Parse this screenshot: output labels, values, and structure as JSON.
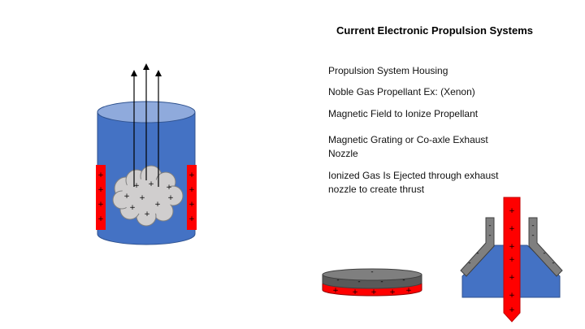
{
  "title": "Current Electronic Propulsion Systems",
  "legend": [
    "Propulsion System Housing",
    "Noble Gas Propellant Ex: (Xenon)",
    "Magnetic Field to Ionize Propellant",
    "Magnetic Grating or Co-axle Exhaust Nozzle",
    "Ionized Gas Is Ejected through exhaust nozzle to create thrust"
  ],
  "symbols": {
    "plus": "+",
    "minus": "-"
  },
  "colors": {
    "housing": "#4472c4",
    "housing_top": "#8faadc",
    "magnet": "#ff0000",
    "gas": "#d0cece",
    "grating_top": "#7f7f7f"
  }
}
